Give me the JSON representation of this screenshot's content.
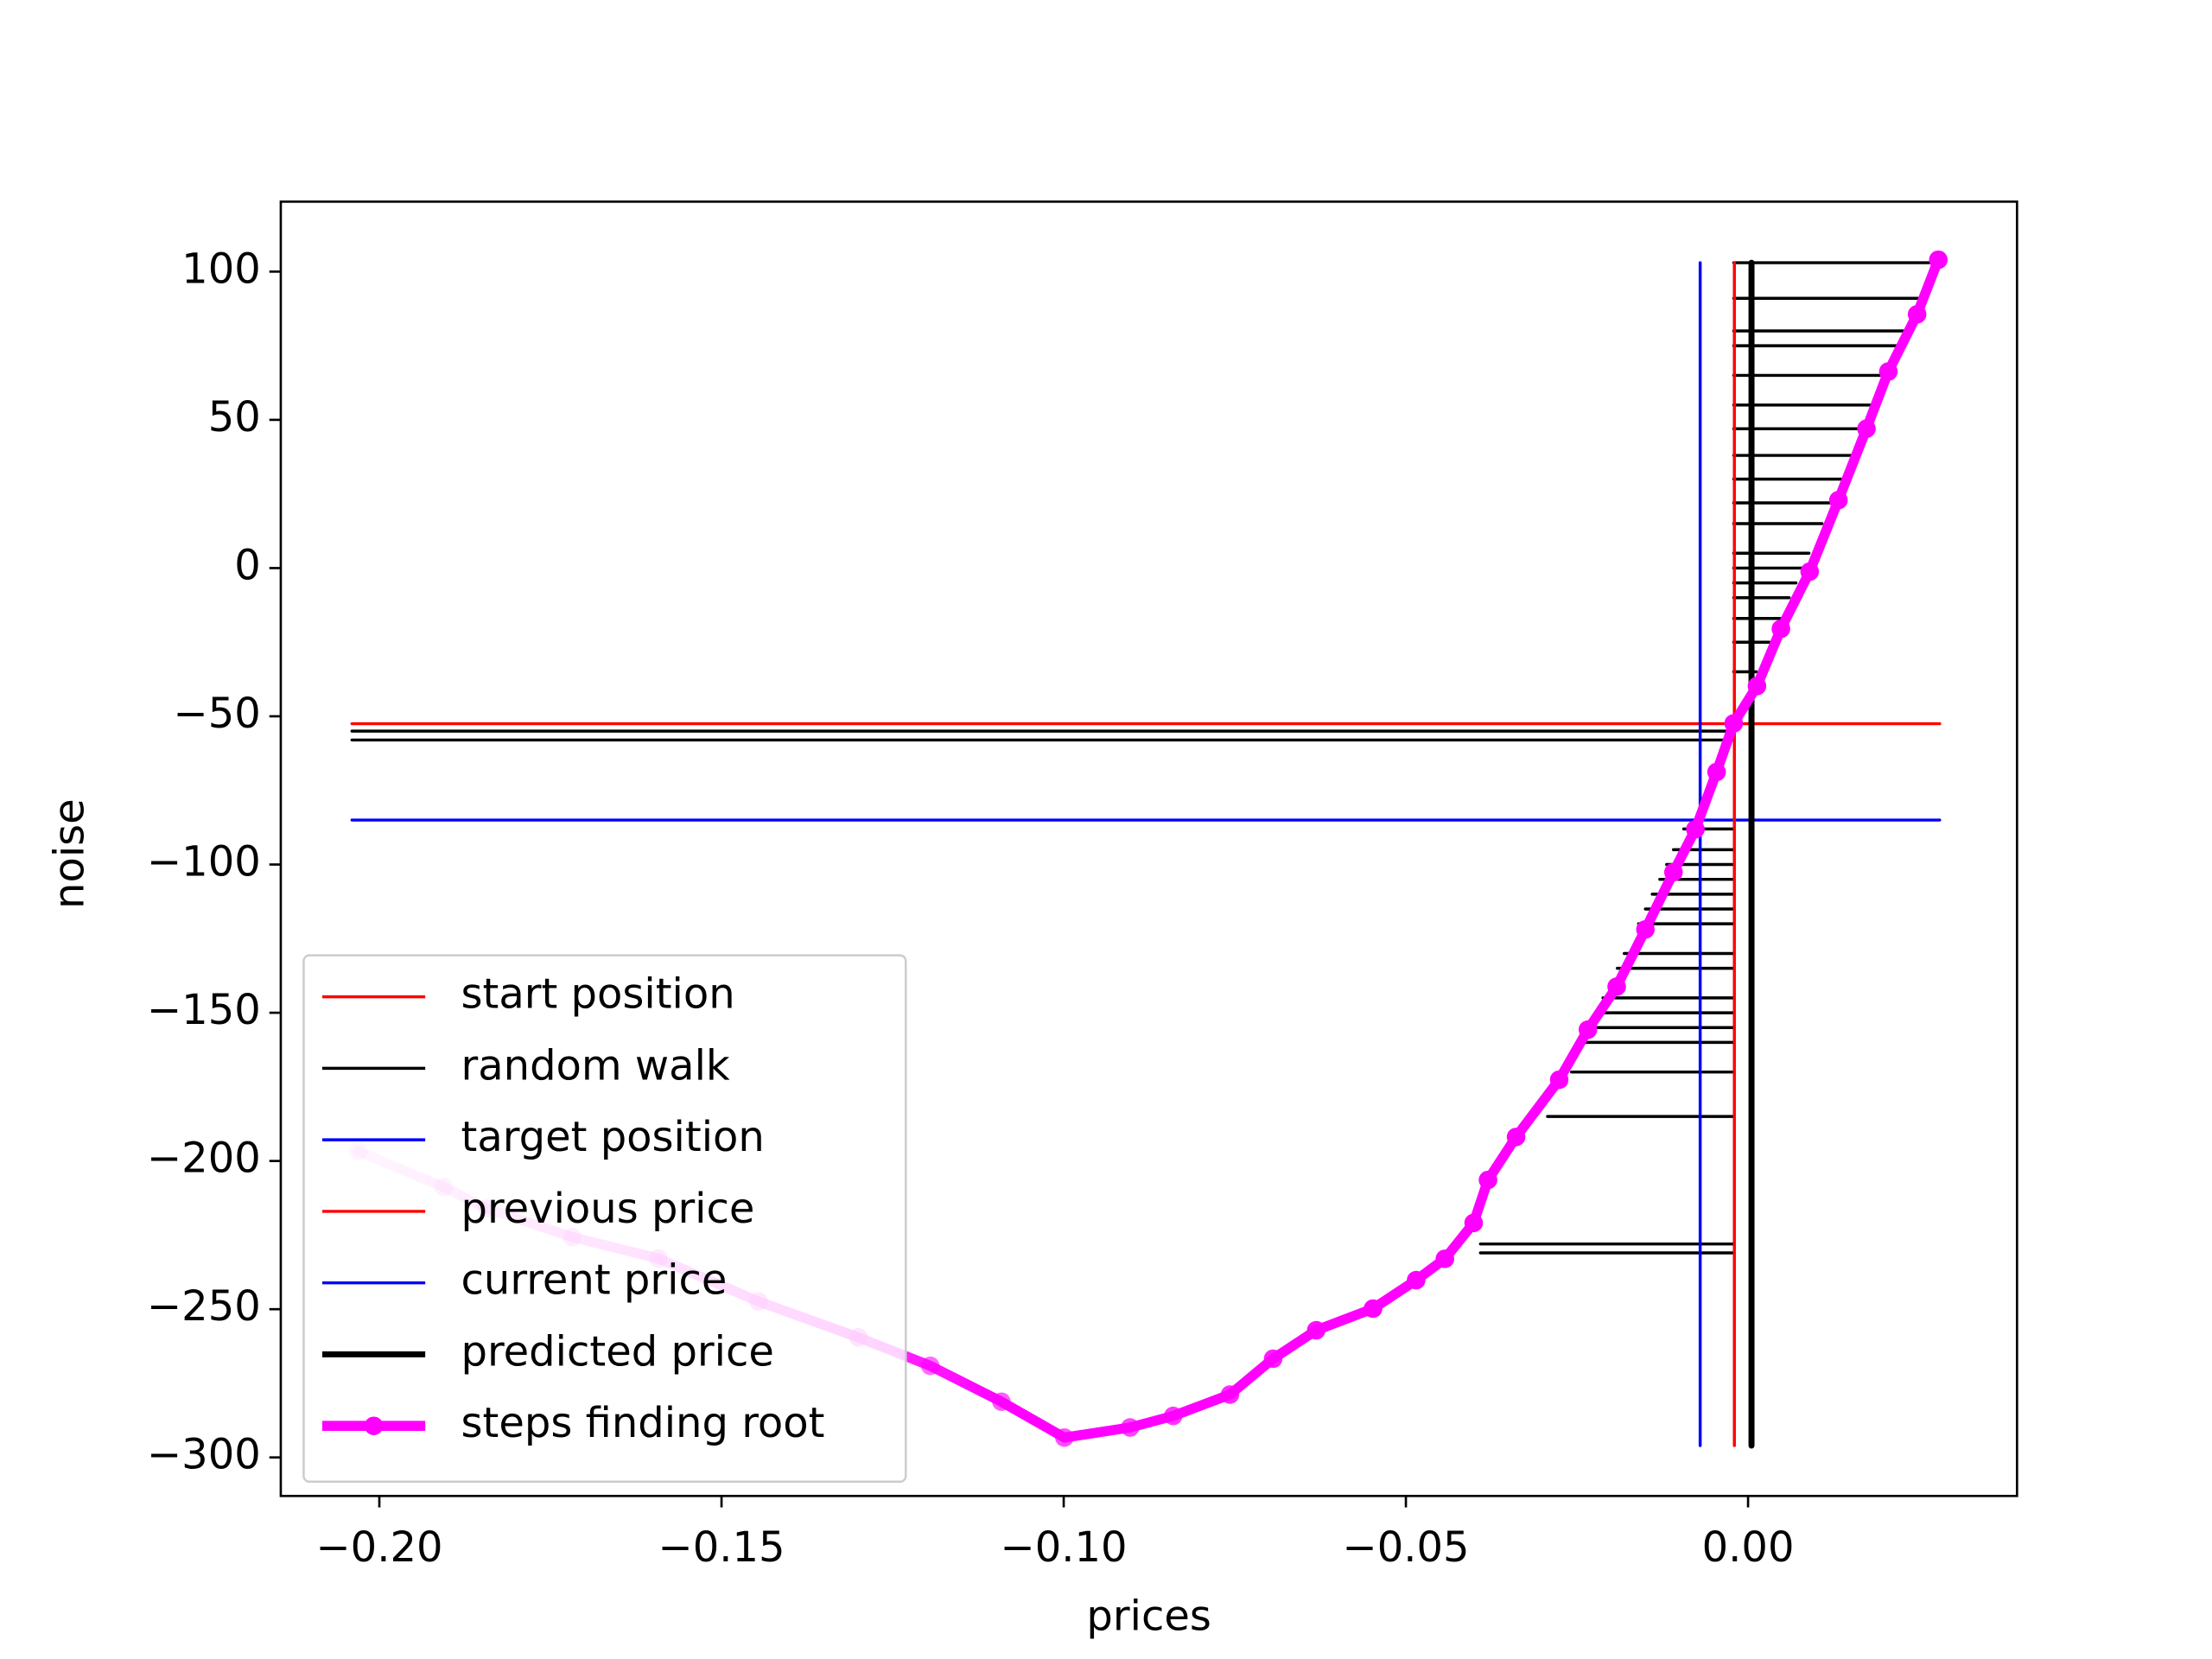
{
  "chart_data": {
    "type": "line",
    "xlabel": "prices",
    "ylabel": "noise",
    "xlim": [
      -0.2144,
      0.0393
    ],
    "ylim": [
      -313,
      123.6
    ],
    "xticks": [
      {
        "value": -0.2,
        "label": "−0.20"
      },
      {
        "value": -0.15,
        "label": "−0.15"
      },
      {
        "value": -0.1,
        "label": "−0.10"
      },
      {
        "value": -0.05,
        "label": "−0.05"
      },
      {
        "value": 0,
        "label": "0.00"
      }
    ],
    "yticks": [
      {
        "value": -300,
        "label": "−300"
      },
      {
        "value": -250,
        "label": "−250"
      },
      {
        "value": -200,
        "label": "−200"
      },
      {
        "value": -150,
        "label": "−150"
      },
      {
        "value": -100,
        "label": "−100"
      },
      {
        "value": -50,
        "label": "−50"
      },
      0,
      50,
      100
    ],
    "legend": "lower left",
    "grid": false,
    "series": [
      {
        "name": "start position",
        "color": "#ff0000",
        "line_width": 1.5,
        "x": [
          -0.204,
          0.028
        ],
        "y": [
          -52.5,
          -52.5
        ]
      },
      {
        "name": "random walk",
        "color": "#000000",
        "line_width": 1.5,
        "x": [
          -0.204,
          -0.0021,
          null,
          -0.204,
          -0.0021,
          null,
          -0.0021,
          0.0276,
          null,
          -0.0021,
          0.0253,
          null,
          -0.0021,
          0.0232,
          null,
          -0.0021,
          0.0222,
          null,
          -0.0021,
          0.0203,
          null,
          -0.0021,
          0.0184,
          null,
          -0.0021,
          0.0169,
          null,
          -0.0021,
          0.0152,
          null,
          -0.0021,
          0.0136,
          null,
          -0.0021,
          0.0121,
          null,
          -0.0021,
          0.0108,
          null,
          -0.0021,
          0.0089,
          null,
          -0.0021,
          0.0079,
          null,
          -0.0021,
          0.007,
          null,
          -0.0021,
          0.006,
          null,
          -0.0021,
          0.0047,
          null,
          -0.0021,
          0.0031,
          null,
          -0.0021,
          0.0012,
          null,
          -0.0094,
          -0.0021,
          null,
          -0.0109,
          -0.0021,
          null,
          -0.0119,
          -0.0021,
          null,
          -0.0129,
          -0.0021,
          null,
          -0.014,
          -0.0021,
          null,
          -0.015,
          -0.0021,
          null,
          -0.016,
          -0.0021,
          null,
          -0.0181,
          -0.0021,
          null,
          -0.0191,
          -0.0021,
          null,
          -0.0212,
          -0.0021,
          null,
          -0.0222,
          -0.0021,
          null,
          -0.0232,
          -0.0021,
          null,
          -0.024,
          -0.0021,
          null,
          -0.0258,
          -0.0021,
          null,
          -0.0293,
          -0.0021,
          null,
          -0.0391,
          -0.0021,
          null,
          -0.0391,
          -0.0021
        ],
        "y": [
          -55,
          -55,
          null,
          -58,
          -58,
          null,
          103,
          103,
          null,
          91,
          91,
          null,
          80,
          80,
          null,
          75,
          75,
          null,
          65,
          65,
          null,
          55,
          55,
          null,
          47,
          47,
          null,
          38,
          38,
          null,
          30,
          30,
          null,
          22,
          22,
          null,
          15,
          15,
          null,
          5,
          5,
          null,
          0,
          0,
          null,
          -5,
          -5,
          null,
          -10,
          -10,
          null,
          -17,
          -17,
          null,
          -25,
          -25,
          null,
          -35,
          -35,
          null,
          -88,
          -88,
          null,
          -95,
          -95,
          null,
          -100,
          -100,
          null,
          -105,
          -105,
          null,
          -110,
          -110,
          null,
          -115,
          -115,
          null,
          -120,
          -120,
          null,
          -130,
          -130,
          null,
          -135,
          -135,
          null,
          -145,
          -145,
          null,
          -150,
          -150,
          null,
          -155,
          -155,
          null,
          -160,
          -160,
          null,
          -170,
          -170,
          null,
          -185,
          -185,
          null,
          -228,
          -228,
          null,
          -231,
          -231
        ]
      },
      {
        "name": "target position",
        "color": "#0000ff",
        "line_width": 1.5,
        "x": [
          -0.204,
          0.028
        ],
        "y": [
          -85,
          -85
        ]
      },
      {
        "name": "previous price",
        "color": "#ff0000",
        "line_width": 1.5,
        "x": [
          -0.002,
          -0.002
        ],
        "y": [
          103,
          -296
        ]
      },
      {
        "name": "current price",
        "color": "#0000ff",
        "line_width": 1.5,
        "x": [
          -0.007,
          -0.007
        ],
        "y": [
          103,
          -296
        ]
      },
      {
        "name": "predicted price",
        "color": "#000000",
        "line_width": 3,
        "x": [
          0.0005,
          0.0005
        ],
        "y": [
          103,
          -296
        ]
      },
      {
        "name": "steps finding root",
        "color": "#ff00ff",
        "line_width": 5,
        "marker": "o",
        "x": [
          -0.2031,
          -0.1906,
          -0.1843,
          -0.1718,
          -0.1592,
          -0.1446,
          -0.13,
          -0.1195,
          -0.1091,
          -0.0999,
          -0.0903,
          -0.084,
          -0.0757,
          -0.0694,
          -0.0631,
          -0.0548,
          -0.0485,
          -0.0443,
          -0.0401,
          -0.038,
          -0.0339,
          -0.0276,
          -0.0234,
          -0.0192,
          -0.015,
          -0.0109,
          -0.0077,
          -0.0046,
          -0.0021,
          0.0013,
          0.0048,
          0.009,
          0.0132,
          0.0173,
          0.0205,
          0.0247,
          0.0278
        ],
        "y": [
          -196.7,
          -208.8,
          -216,
          -225.7,
          -232.9,
          -247.4,
          -259.5,
          -269.1,
          -281.2,
          -293.3,
          -289.9,
          -286,
          -278.8,
          -266.7,
          -257.1,
          -249.8,
          -240.2,
          -233,
          -220.9,
          -206.4,
          -191.9,
          -172.6,
          -155.7,
          -141.2,
          -121.9,
          -102.6,
          -88.1,
          -68.8,
          -52.4,
          -39.8,
          -20.5,
          -1.2,
          22.9,
          47,
          66.3,
          85.6,
          104
        ]
      }
    ]
  }
}
